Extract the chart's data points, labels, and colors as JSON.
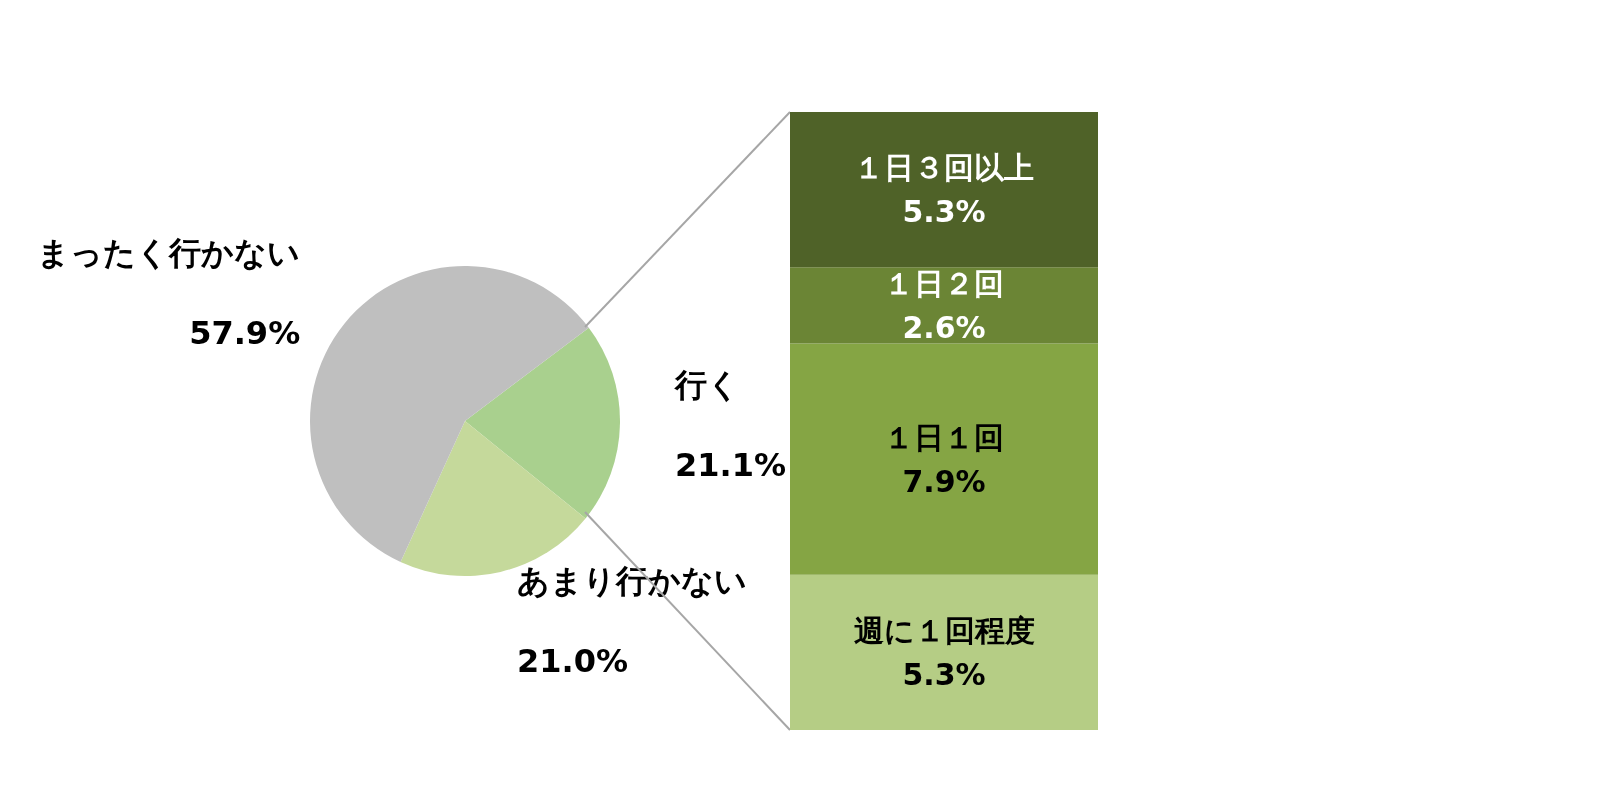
{
  "chart_data": [
    {
      "type": "pie",
      "categories": [
        "行く",
        "あまり行かない",
        "まったく行かない"
      ],
      "values": [
        21.1,
        21.0,
        57.9
      ],
      "colors": [
        "#a9d08e",
        "#c5d99b",
        "#bfbfbf"
      ],
      "value_labels": [
        "21.1%",
        "21.0%",
        "57.9%"
      ],
      "legend": false
    },
    {
      "type": "bar",
      "stacked": true,
      "categories": [
        null
      ],
      "legend": false,
      "series": [
        {
          "name": "週に１回程度",
          "color": "#b5cd85",
          "values": [
            5.3
          ],
          "value_labels": [
            "5.3%"
          ]
        },
        {
          "name": "１日１回",
          "color": "#85a544",
          "values": [
            7.9
          ],
          "value_labels": [
            "7.9%"
          ]
        },
        {
          "name": "１日２回",
          "color": "#6b8535",
          "values": [
            2.6
          ],
          "value_labels": [
            "2.6%"
          ]
        },
        {
          "name": "１日３回以上",
          "color": "#4f6228",
          "values": [
            5.3
          ],
          "value_labels": [
            "5.3%"
          ]
        }
      ]
    }
  ]
}
